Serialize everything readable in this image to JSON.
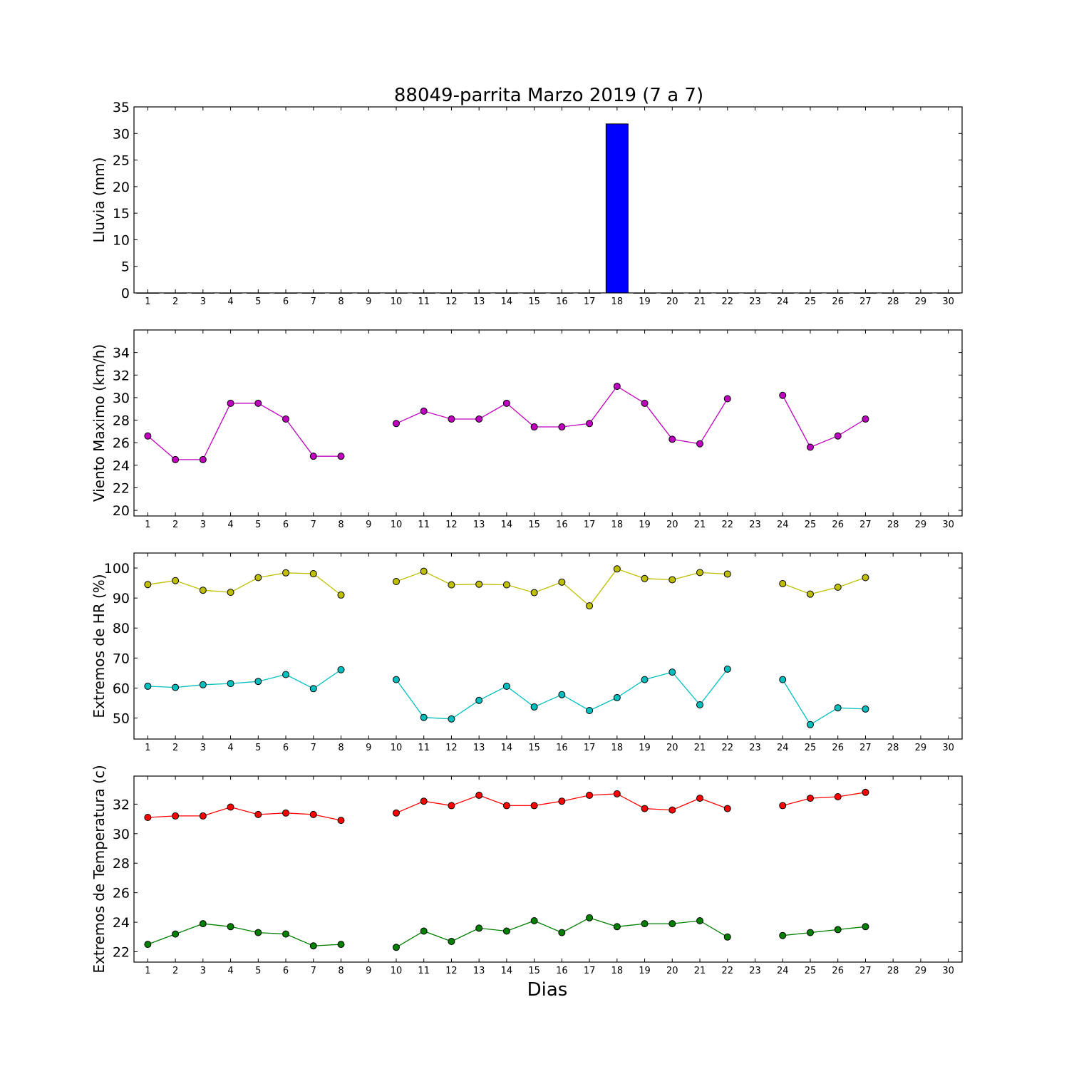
{
  "title": "88049-parrita Marzo 2019  (7 a 7)",
  "xlabel": "Dias",
  "colors": {
    "rain": "#0000ff",
    "wind": "#bf00bf",
    "hr_max": "#bfbf00",
    "hr_min": "#00bfbf",
    "temp_max": "#ff0000",
    "temp_min": "#007f00"
  },
  "chart_data": [
    {
      "type": "bar",
      "ylabel": "Lluvia (mm)",
      "xlim": [
        0.5,
        30.5
      ],
      "ylim": [
        0,
        35
      ],
      "yticks": [
        0,
        5,
        10,
        15,
        20,
        25,
        30,
        35
      ],
      "xticks": [
        1,
        2,
        3,
        4,
        5,
        6,
        7,
        8,
        9,
        10,
        11,
        12,
        13,
        14,
        15,
        16,
        17,
        18,
        19,
        20,
        21,
        22,
        23,
        24,
        25,
        26,
        27,
        28,
        29,
        30
      ],
      "x": [
        1,
        2,
        3,
        4,
        5,
        6,
        7,
        8,
        9,
        10,
        11,
        12,
        13,
        14,
        15,
        16,
        17,
        18,
        19,
        20,
        21,
        22,
        23,
        24,
        25,
        26,
        27,
        28,
        29,
        30
      ],
      "values": [
        0,
        0,
        0,
        0,
        0,
        0,
        0,
        0,
        0,
        0,
        0,
        0,
        0,
        0,
        0,
        0,
        0,
        31.8,
        0,
        0,
        0,
        0,
        0,
        0,
        0,
        0,
        0,
        0,
        0,
        0
      ]
    },
    {
      "type": "line",
      "ylabel": "Viento Maximo (km/h)",
      "xlim": [
        0.5,
        30.5
      ],
      "ylim": [
        19.5,
        36
      ],
      "yticks": [
        20,
        22,
        24,
        26,
        28,
        30,
        32,
        34
      ],
      "xticks": [
        1,
        2,
        3,
        4,
        5,
        6,
        7,
        8,
        9,
        10,
        11,
        12,
        13,
        14,
        15,
        16,
        17,
        18,
        19,
        20,
        21,
        22,
        23,
        24,
        25,
        26,
        27,
        28,
        29,
        30
      ],
      "x": [
        1,
        2,
        3,
        4,
        5,
        6,
        7,
        8,
        9,
        10,
        11,
        12,
        13,
        14,
        15,
        16,
        17,
        18,
        19,
        20,
        21,
        22,
        23,
        24,
        25,
        26,
        27
      ],
      "series": [
        {
          "values": [
            26.6,
            24.5,
            24.5,
            29.5,
            29.5,
            28.1,
            24.8,
            24.8,
            null,
            27.7,
            28.8,
            28.1,
            28.1,
            29.5,
            27.4,
            27.4,
            27.7,
            31.0,
            29.5,
            26.3,
            25.9,
            29.9,
            null,
            30.2,
            25.6,
            26.6,
            28.1
          ]
        }
      ]
    },
    {
      "type": "line",
      "ylabel": "Extremos de HR (%)",
      "xlim": [
        0.5,
        30.5
      ],
      "ylim": [
        43,
        105
      ],
      "yticks": [
        50,
        60,
        70,
        80,
        90,
        100
      ],
      "xticks": [
        1,
        2,
        3,
        4,
        5,
        6,
        7,
        8,
        9,
        10,
        11,
        12,
        13,
        14,
        15,
        16,
        17,
        18,
        19,
        20,
        21,
        22,
        23,
        24,
        25,
        26,
        27,
        28,
        29,
        30
      ],
      "x": [
        1,
        2,
        3,
        4,
        5,
        6,
        7,
        8,
        9,
        10,
        11,
        12,
        13,
        14,
        15,
        16,
        17,
        18,
        19,
        20,
        21,
        22,
        23,
        24,
        25,
        26,
        27
      ],
      "series": [
        {
          "values": [
            94.5,
            95.8,
            92.6,
            91.9,
            96.8,
            98.4,
            98.1,
            91.0,
            null,
            95.5,
            98.9,
            94.4,
            94.6,
            94.4,
            91.8,
            95.3,
            87.4,
            99.7,
            96.5,
            96.1,
            98.5,
            98.0,
            null,
            94.8,
            91.3,
            93.6,
            96.8
          ]
        },
        {
          "values": [
            60.6,
            60.2,
            61.1,
            61.5,
            62.2,
            64.5,
            59.8,
            66.1,
            null,
            62.8,
            50.2,
            49.7,
            55.9,
            60.6,
            53.7,
            57.8,
            52.5,
            56.8,
            62.8,
            65.3,
            54.4,
            66.3,
            null,
            62.8,
            47.8,
            53.4,
            53.0
          ]
        }
      ]
    },
    {
      "type": "line",
      "ylabel": "Extremos de Temperatura (c)",
      "xlim": [
        0.5,
        30.5
      ],
      "ylim": [
        21.3,
        33.9
      ],
      "yticks": [
        22,
        24,
        26,
        28,
        30,
        32
      ],
      "xticks": [
        1,
        2,
        3,
        4,
        5,
        6,
        7,
        8,
        9,
        10,
        11,
        12,
        13,
        14,
        15,
        16,
        17,
        18,
        19,
        20,
        21,
        22,
        23,
        24,
        25,
        26,
        27,
        28,
        29,
        30
      ],
      "x": [
        1,
        2,
        3,
        4,
        5,
        6,
        7,
        8,
        9,
        10,
        11,
        12,
        13,
        14,
        15,
        16,
        17,
        18,
        19,
        20,
        21,
        22,
        23,
        24,
        25,
        26,
        27
      ],
      "series": [
        {
          "values": [
            31.1,
            31.2,
            31.2,
            31.8,
            31.3,
            31.4,
            31.3,
            30.9,
            null,
            31.4,
            32.2,
            31.9,
            32.6,
            31.9,
            31.9,
            32.2,
            32.6,
            32.7,
            31.7,
            31.6,
            32.4,
            31.7,
            null,
            31.9,
            32.4,
            32.5,
            32.8
          ]
        },
        {
          "values": [
            22.5,
            23.2,
            23.9,
            23.7,
            23.3,
            23.2,
            22.4,
            22.5,
            null,
            22.3,
            23.4,
            22.7,
            23.6,
            23.4,
            24.1,
            23.3,
            24.3,
            23.7,
            23.9,
            23.9,
            24.1,
            23.0,
            null,
            23.1,
            23.3,
            23.5,
            23.7
          ]
        }
      ]
    }
  ]
}
